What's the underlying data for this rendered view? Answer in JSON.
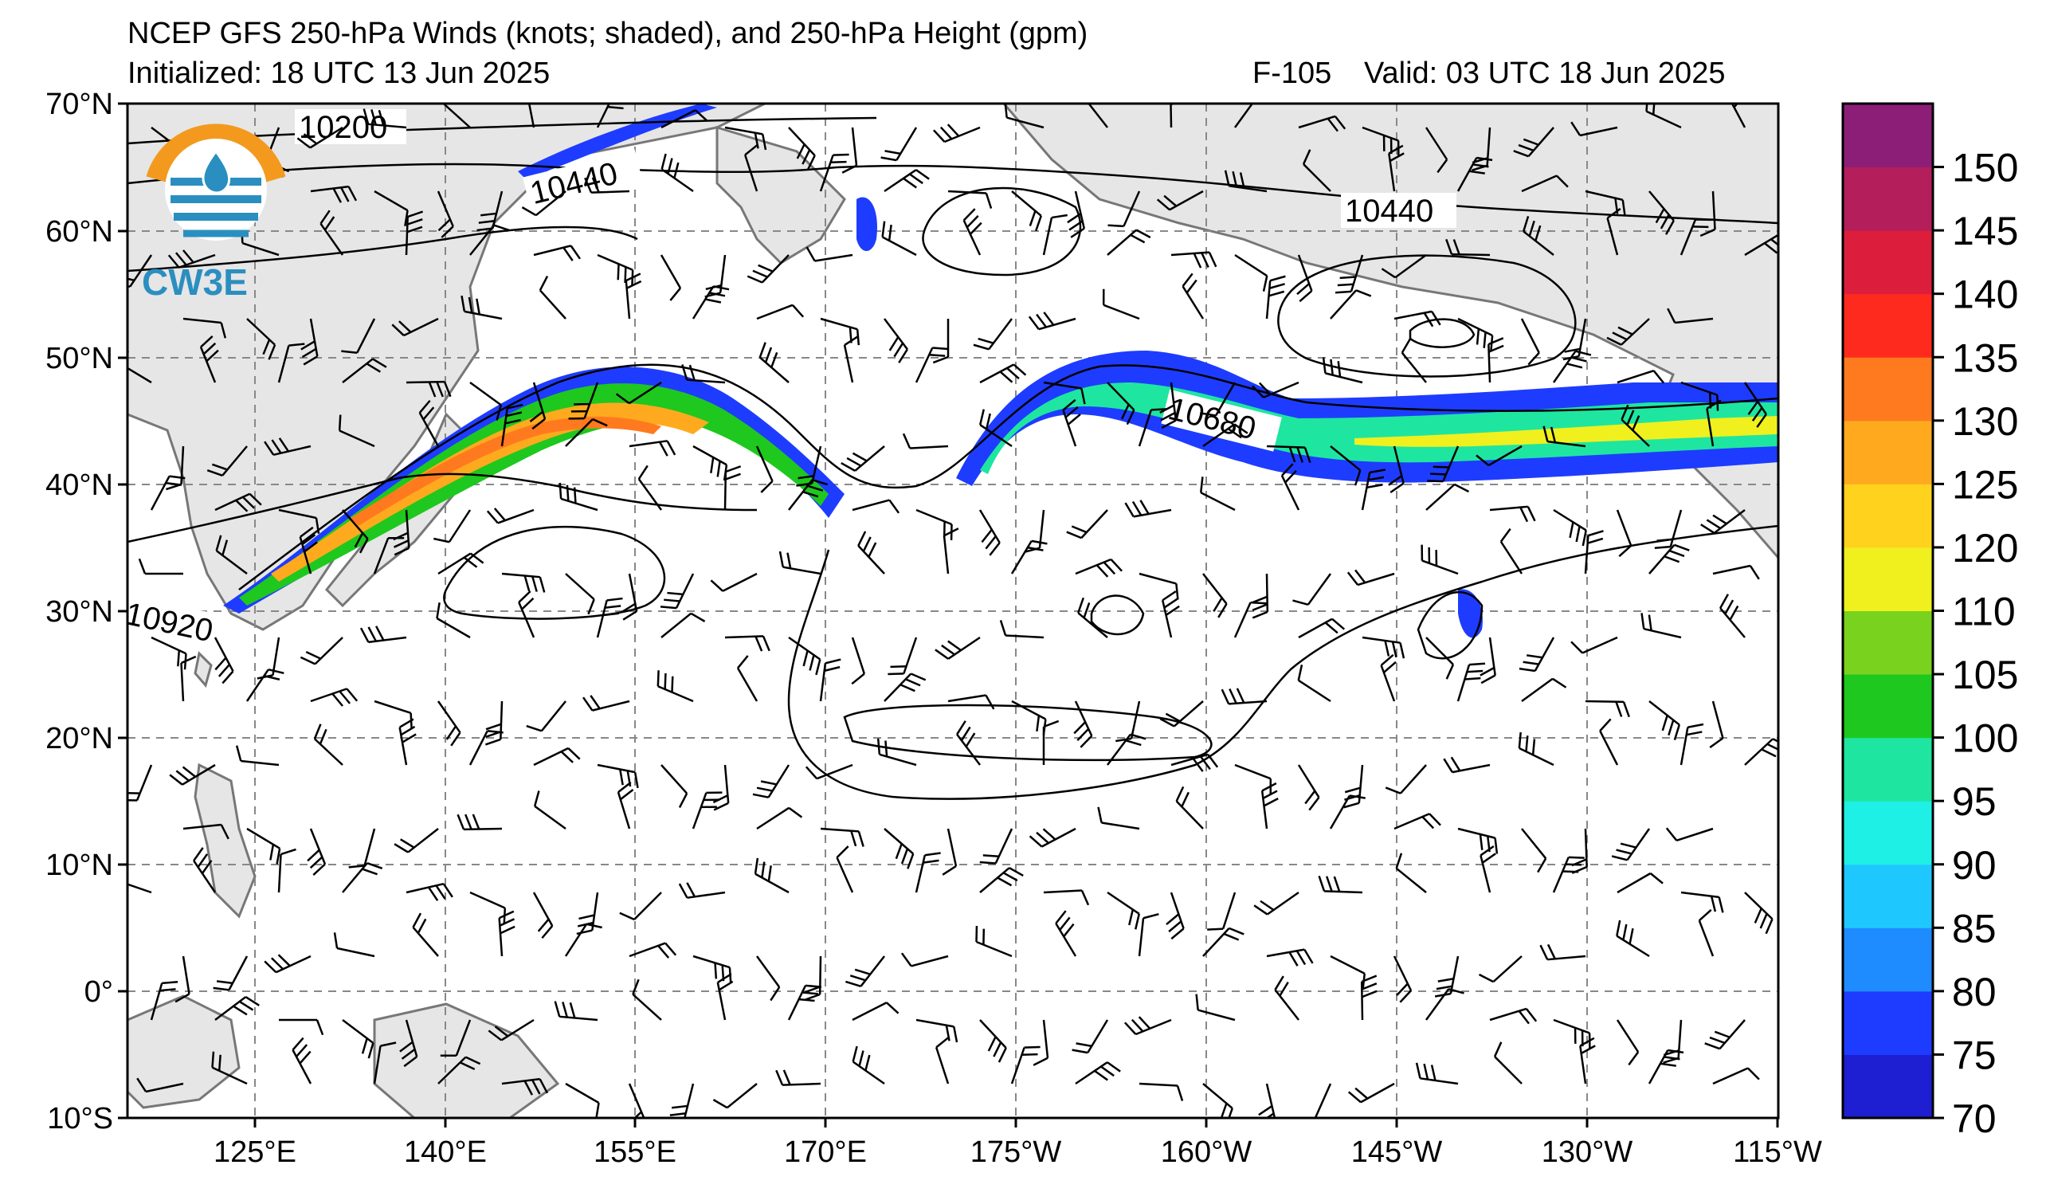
{
  "header": {
    "title": "NCEP GFS 250-hPa Winds (knots; shaded), and 250-hPa Height (gpm)",
    "initialized": "Initialized: 18 UTC 13 Jun 2025",
    "forecast_hour": "F-105",
    "valid": "Valid: 03 UTC 18 Jun 2025"
  },
  "logo": {
    "text": "CW3E",
    "color": "#2a8fc0",
    "accent": "#f39a1e"
  },
  "axes": {
    "lat_labels": [
      "70°N",
      "60°N",
      "50°N",
      "40°N",
      "30°N",
      "20°N",
      "10°N",
      "0°",
      "10°S"
    ],
    "lon_labels": [
      "125°E",
      "140°E",
      "155°E",
      "170°E",
      "175°W",
      "160°W",
      "145°W",
      "130°W",
      "115°W"
    ]
  },
  "contours": {
    "labels": [
      "10200",
      "10440",
      "10440",
      "10680",
      "10920"
    ]
  },
  "colorbar": {
    "labels": [
      "70",
      "75",
      "80",
      "85",
      "90",
      "95",
      "100",
      "105",
      "110",
      "120",
      "125",
      "130",
      "135",
      "140",
      "145",
      "150"
    ],
    "colors": [
      "#1e1ed2",
      "#1e3cff",
      "#1e8cff",
      "#1ec8ff",
      "#1ef0e6",
      "#1ee6a0",
      "#1ec81e",
      "#78d21e",
      "#f0f01e",
      "#ffd21e",
      "#ffaa1e",
      "#ff7a1e",
      "#ff2a1e",
      "#dc1e3c",
      "#b41e5a",
      "#8c1e78"
    ]
  }
}
